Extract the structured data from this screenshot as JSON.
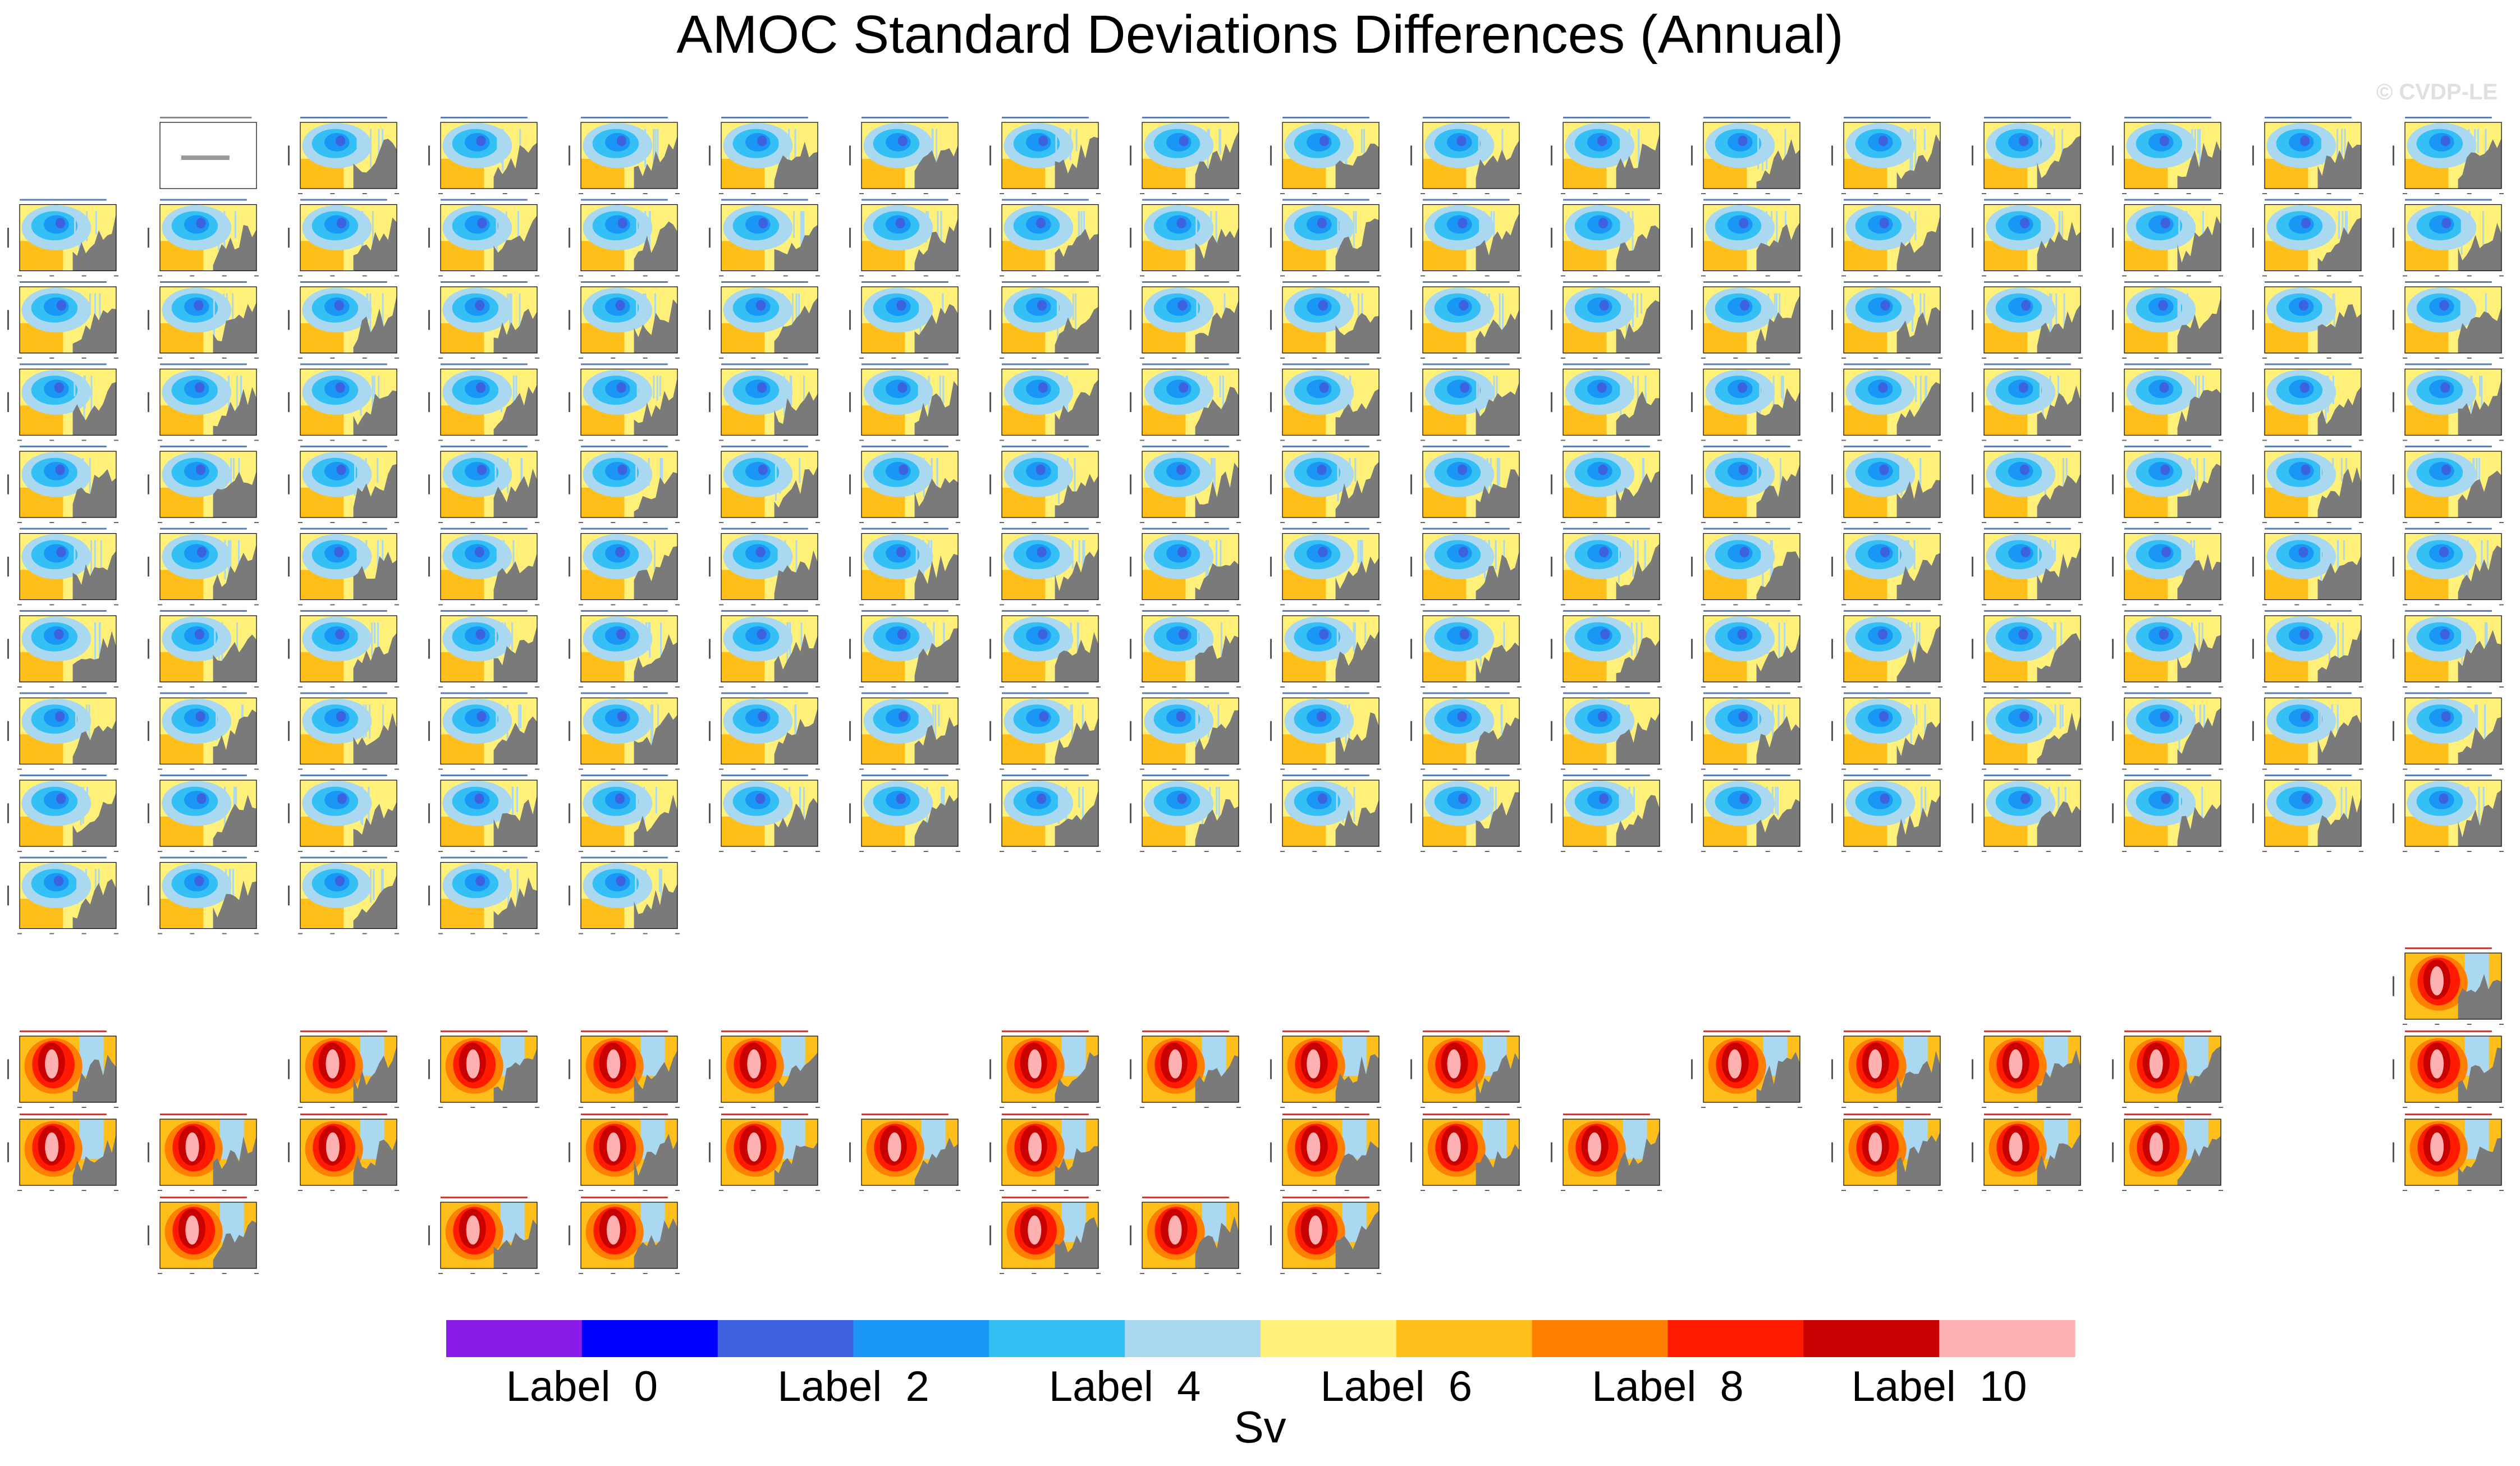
{
  "title": "AMOC Standard Deviations Differences (Annual)",
  "watermark": "© CVDP-LE",
  "chart_data": {
    "type": "heatmap",
    "title": "AMOC Standard Deviations Differences (Annual)",
    "description_of_panels": "Small-multiple grid of latitude-depth AMOC standard deviation difference panels (tick labels unreadable at this resolution)",
    "colorbar": {
      "unit": "Sv",
      "labels": [
        "Label_0",
        "Label_2",
        "Label_4",
        "Label_6",
        "Label_8",
        "Label_10"
      ],
      "colors": [
        "#8a1be8",
        "#0000ff",
        "#3d62e0",
        "#1a96f5",
        "#35c0f5",
        "#aad8f0",
        "#fff07a",
        "#ffbf1a",
        "#ff7f00",
        "#ff1a00",
        "#c80000",
        "#ffb0b0"
      ]
    },
    "panel_groups": [
      {
        "group": "members_blue",
        "rows": [
          [
            0,
            1,
            1,
            1,
            1,
            1,
            1,
            1,
            1,
            1,
            1,
            1,
            1,
            1,
            1,
            1,
            1,
            1
          ],
          [
            1,
            1,
            1,
            1,
            1,
            1,
            1,
            1,
            1,
            1,
            1,
            1,
            1,
            1,
            1,
            1,
            1,
            1
          ],
          [
            1,
            1,
            1,
            1,
            1,
            1,
            1,
            1,
            1,
            1,
            1,
            1,
            1,
            1,
            1,
            1,
            1,
            1
          ],
          [
            1,
            1,
            1,
            1,
            1,
            1,
            1,
            1,
            1,
            1,
            1,
            1,
            1,
            1,
            1,
            1,
            1,
            1
          ],
          [
            1,
            1,
            1,
            1,
            1,
            1,
            1,
            1,
            1,
            1,
            1,
            1,
            1,
            1,
            1,
            1,
            1,
            1
          ],
          [
            1,
            1,
            1,
            1,
            1,
            1,
            1,
            1,
            1,
            1,
            1,
            1,
            1,
            1,
            1,
            1,
            1,
            1
          ],
          [
            1,
            1,
            1,
            1,
            1,
            1,
            1,
            1,
            1,
            1,
            1,
            1,
            1,
            1,
            1,
            1,
            1,
            1
          ],
          [
            1,
            1,
            1,
            1,
            1,
            1,
            1,
            1,
            1,
            1,
            1,
            1,
            1,
            1,
            1,
            1,
            1,
            1
          ],
          [
            1,
            1,
            1,
            1,
            1,
            1,
            1,
            1,
            1,
            1,
            1,
            1,
            1,
            1,
            1,
            1,
            1,
            1
          ],
          [
            1,
            1,
            1,
            1,
            1,
            0,
            0,
            0,
            0,
            0,
            0,
            0,
            0,
            0,
            0,
            0,
            0,
            0
          ]
        ]
      },
      {
        "group": "ensemble_red",
        "rows": [
          [
            0,
            0,
            0,
            0,
            0,
            0,
            0,
            0,
            0,
            0,
            0,
            0,
            0,
            0,
            0,
            0,
            0,
            1
          ],
          [
            1,
            0,
            1,
            1,
            1,
            1,
            0,
            1,
            1,
            1,
            1,
            0,
            1,
            1,
            1,
            1,
            0,
            1
          ],
          [
            1,
            1,
            1,
            0,
            1,
            1,
            1,
            1,
            0,
            1,
            1,
            1,
            0,
            1,
            1,
            1,
            0,
            1
          ],
          [
            0,
            1,
            0,
            1,
            1,
            0,
            0,
            1,
            1,
            1,
            0,
            0,
            0,
            0,
            0,
            0,
            0,
            0
          ]
        ]
      }
    ]
  }
}
